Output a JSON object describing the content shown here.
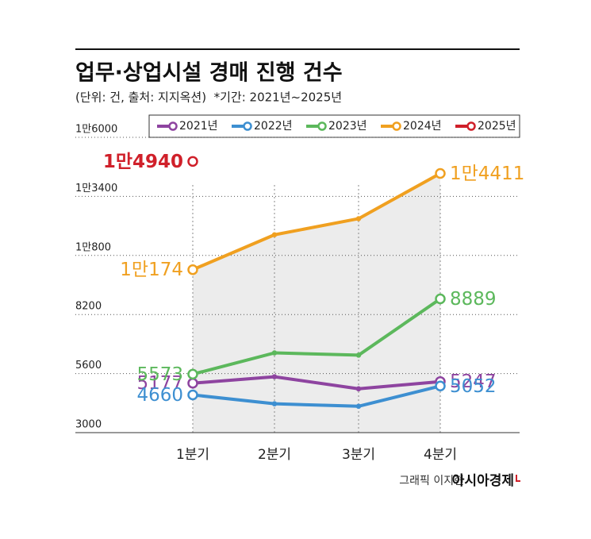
{
  "chart_data": {
    "type": "line",
    "title": "업무·상업시설 경매 진행 건수",
    "subtitle": "(단위: 건, 출처: 지지옥션)  *기간: 2021년~2025년",
    "categories": [
      "1분기",
      "2분기",
      "3분기",
      "4분기"
    ],
    "series": [
      {
        "name": "2021년",
        "color": "#8e44a0",
        "values": [
          5177,
          5460,
          4930,
          5247
        ],
        "value_labels": [
          "5177",
          null,
          null,
          "5247"
        ]
      },
      {
        "name": "2022년",
        "color": "#3d8fd1",
        "values": [
          4660,
          4270,
          4160,
          5052
        ],
        "value_labels": [
          "4660",
          null,
          null,
          "5052"
        ]
      },
      {
        "name": "2023년",
        "color": "#5cb85c",
        "values": [
          5573,
          6510,
          6410,
          8889
        ],
        "value_labels": [
          "5573",
          null,
          null,
          "8889"
        ]
      },
      {
        "name": "2024년",
        "color": "#f0a020",
        "values": [
          10174,
          11710,
          12420,
          14411
        ],
        "value_labels": [
          "1만174",
          null,
          null,
          "1만4411"
        ]
      },
      {
        "name": "2025년",
        "color": "#d0202a",
        "values": [
          14940,
          null,
          null,
          null
        ],
        "value_labels": [
          "1만4940",
          null,
          null,
          null
        ]
      }
    ],
    "ylim": [
      3000,
      16000
    ],
    "yticks": [
      3000,
      5600,
      8200,
      {
        "value": 10800,
        "label": "1만800"
      },
      {
        "value": 13400,
        "label": "1만3400"
      },
      {
        "value": 16000,
        "label": "1만6000"
      }
    ],
    "grid": true,
    "credit": "그래픽 이지현",
    "publisher": "아시아경제"
  }
}
